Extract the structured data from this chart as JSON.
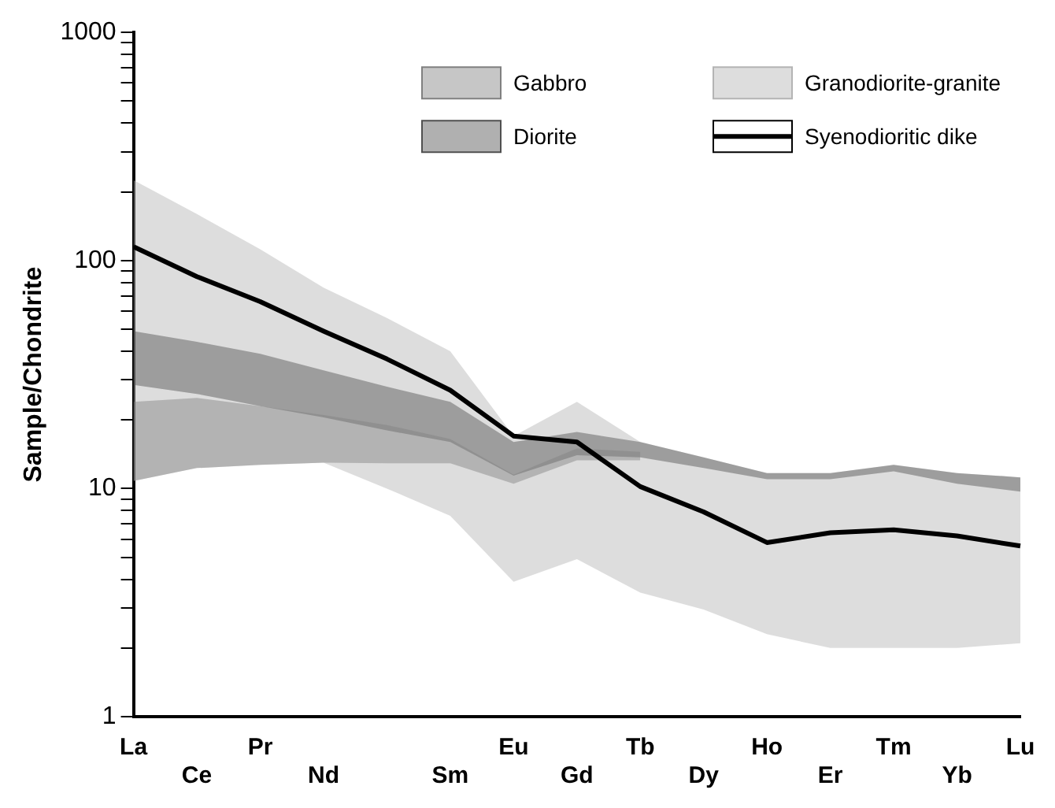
{
  "chart_data": {
    "type": "line",
    "ylabel": "Sample/Chondrite",
    "categories": [
      "La",
      "Ce",
      "Pr",
      "Nd",
      null,
      "Sm",
      "Eu",
      "Gd",
      "Tb",
      "Dy",
      "Ho",
      "Er",
      "Tm",
      "Yb",
      "Lu"
    ],
    "log": true,
    "ylim": [
      1,
      1000
    ],
    "yticks": [
      1,
      {
        "value": 2,
        "label": null
      },
      {
        "value": 3,
        "label": null
      },
      {
        "value": 4,
        "label": null
      },
      {
        "value": 5,
        "label": null
      },
      {
        "value": 6,
        "label": null
      },
      {
        "value": 7,
        "label": null
      },
      {
        "value": 8,
        "label": null
      },
      {
        "value": 9,
        "label": null
      },
      10,
      {
        "value": 20,
        "label": null
      },
      {
        "value": 30,
        "label": null
      },
      {
        "value": 40,
        "label": null
      },
      {
        "value": 50,
        "label": null
      },
      {
        "value": 60,
        "label": null
      },
      {
        "value": 70,
        "label": null
      },
      {
        "value": 80,
        "label": null
      },
      {
        "value": 90,
        "label": null
      },
      100,
      {
        "value": 200,
        "label": null
      },
      {
        "value": 300,
        "label": null
      },
      {
        "value": 400,
        "label": null
      },
      {
        "value": 500,
        "label": null
      },
      {
        "value": 600,
        "label": null
      },
      {
        "value": 700,
        "label": null
      },
      {
        "value": 800,
        "label": null
      },
      {
        "value": 900,
        "label": null
      },
      1000
    ],
    "grid": false,
    "legend": "top right",
    "marker": "none",
    "series": [
      {
        "name": "Gabbro",
        "type": "area",
        "color": "#808080",
        "values": [
          null,
          null,
          null,
          null,
          null,
          null,
          null,
          null,
          null,
          null,
          null,
          null,
          null,
          null,
          null
        ],
        "upper": [
          24,
          25,
          23,
          21,
          19,
          16.5,
          11.5,
          15,
          14.5,
          null,
          null,
          null,
          null,
          null,
          null
        ],
        "lower": [
          10.8,
          12.3,
          12.7,
          13,
          12.9,
          12.9,
          10.5,
          13.3,
          13.3,
          null,
          null,
          null,
          null,
          null,
          null
        ]
      },
      {
        "name": "Diorite",
        "type": "area",
        "color": "#505050",
        "values": [
          null,
          null,
          null,
          null,
          null,
          null,
          null,
          null,
          null,
          null,
          null,
          null,
          null,
          null,
          null
        ],
        "upper": [
          49,
          44,
          39,
          33,
          28,
          24,
          16,
          17.7,
          16,
          13.7,
          11.7,
          11.7,
          12.7,
          11.7,
          11.2
        ],
        "lower": [
          28.5,
          26,
          23,
          20.5,
          18,
          16,
          11.4,
          14,
          13.7,
          12.3,
          11,
          11,
          11.9,
          10.5,
          9.7
        ]
      },
      {
        "name": "Granodiorite-granite",
        "type": "area",
        "color": "#b4b4b4",
        "values": [
          null,
          null,
          null,
          null,
          null,
          null,
          null,
          null,
          null,
          null,
          null,
          null,
          null,
          null,
          null
        ],
        "upper": [
          225,
          160,
          112,
          76,
          56,
          40,
          17,
          24,
          16,
          13.7,
          11.7,
          11.7,
          12.7,
          11.7,
          11.2
        ],
        "lower": [
          10.8,
          12.3,
          12.7,
          13,
          10,
          7.6,
          3.9,
          4.9,
          3.5,
          2.95,
          2.3,
          2,
          2,
          2,
          2.1
        ]
      },
      {
        "name": "Syenodioritic dike",
        "type": "line",
        "color": "#000000",
        "values": [
          115,
          85,
          66,
          49,
          37,
          27,
          17,
          16,
          10.2,
          7.9,
          5.8,
          6.4,
          6.6,
          6.2,
          5.6
        ]
      }
    ]
  }
}
